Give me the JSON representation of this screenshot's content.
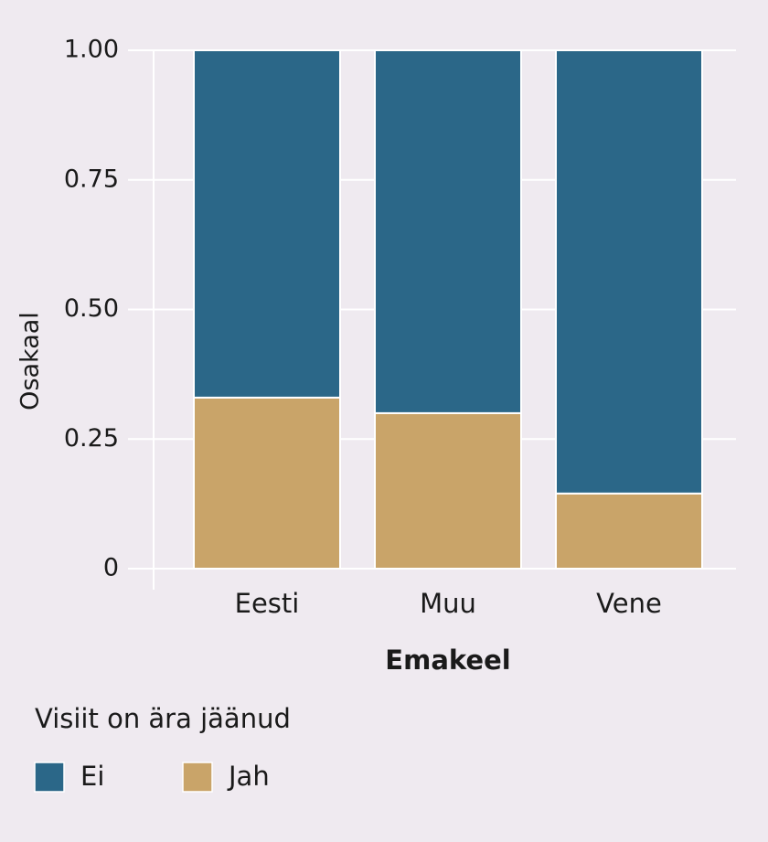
{
  "chart_data": {
    "type": "stacked_bar",
    "x_label": "Emakeel",
    "y_label": "Osakaal",
    "categories": [
      "Eesti",
      "Muu",
      "Vene"
    ],
    "series": [
      {
        "name": "Jah",
        "color": "#c9a469",
        "values": [
          0.33,
          0.3,
          0.145
        ]
      },
      {
        "name": "Ei",
        "color": "#2b6788",
        "values": [
          0.67,
          0.7,
          0.855
        ]
      }
    ],
    "ylim": [
      0,
      1
    ],
    "yticks": [
      0,
      {
        "value": 0.25,
        "label": "0.25"
      },
      {
        "value": 0.5,
        "label": "0.50"
      },
      {
        "value": 0.75,
        "label": "0.75"
      },
      {
        "value": 1,
        "label": "1.00"
      }
    ],
    "grid": true,
    "legend_title": "Visiit on ära jäänud",
    "legend_order": [
      "Ei",
      "Jah"
    ],
    "legend_position": "bottom"
  }
}
